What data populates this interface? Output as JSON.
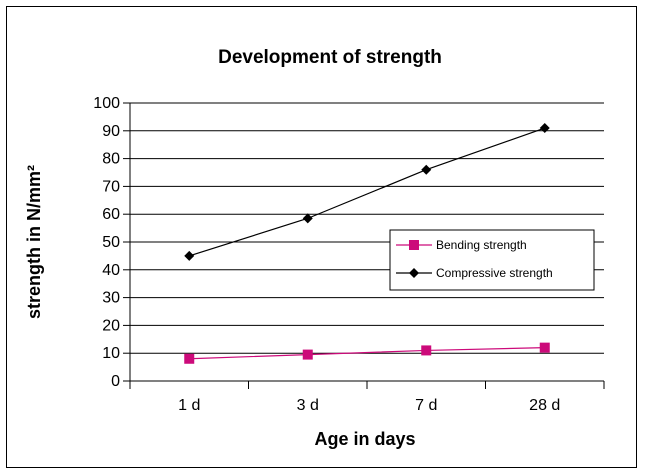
{
  "chart_data": {
    "type": "line",
    "title": "Development of strength",
    "xlabel": "Age in days",
    "ylabel": "strength in N/mm²",
    "categories": [
      "1 d",
      "3 d",
      "7 d",
      "28 d"
    ],
    "ylim": [
      0,
      100
    ],
    "yticks": [
      0,
      10,
      20,
      30,
      40,
      50,
      60,
      70,
      80,
      90,
      100
    ],
    "grid": true,
    "legend_position": "right",
    "series": [
      {
        "name": "Bending strength",
        "values": [
          8,
          9.5,
          11,
          12
        ],
        "color": "#cc0a7a",
        "marker": "square"
      },
      {
        "name": "Compressive strength",
        "values": [
          45,
          58.5,
          76,
          91
        ],
        "color": "#000000",
        "marker": "diamond"
      }
    ]
  }
}
